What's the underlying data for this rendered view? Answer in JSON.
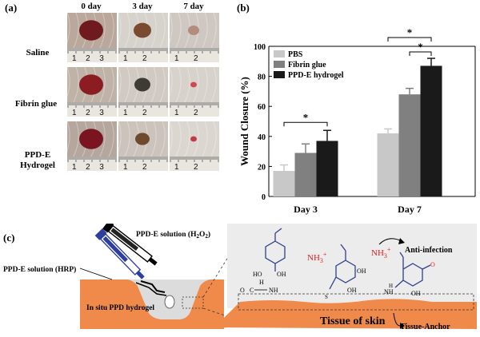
{
  "panel_a": {
    "label": "(a)",
    "columns": [
      "0 day",
      "3 day",
      "7 day"
    ],
    "rows": [
      {
        "label_lines": [
          "Saline"
        ]
      },
      {
        "label_lines": [
          "Fibrin glue"
        ]
      },
      {
        "label_lines": [
          "PPD-E",
          "Hydrogel"
        ]
      }
    ],
    "ruler_marks": [
      [
        "1",
        "2",
        "3"
      ],
      [
        "1",
        "2"
      ],
      [
        "1",
        "2"
      ]
    ]
  },
  "panel_b": {
    "label": "(b)"
  },
  "chart_data": {
    "type": "bar",
    "categories": [
      "Day 3",
      "Day 7"
    ],
    "series": [
      {
        "name": "PBS",
        "values": [
          17,
          42
        ],
        "errors": [
          4,
          3
        ],
        "color": "#c8c8c8"
      },
      {
        "name": "Fibrin glue",
        "values": [
          29,
          68
        ],
        "errors": [
          6,
          4
        ],
        "color": "#808080"
      },
      {
        "name": "PPD-E hydrogel",
        "values": [
          37,
          87
        ],
        "errors": [
          7,
          5
        ],
        "color": "#1a1a1a"
      }
    ],
    "ylabel": "Wound Closure (%)",
    "ylim": [
      0,
      100
    ],
    "yticks": [
      "0",
      "20",
      "40",
      "60",
      "80",
      "100"
    ],
    "legend_position": "top-left",
    "significance": [
      {
        "category": "Day 3",
        "from": "PBS",
        "to": "PPD-E hydrogel",
        "mark": "*"
      },
      {
        "category": "Day 7",
        "from": "PBS",
        "to": "PPD-E hydrogel",
        "mark": "*"
      },
      {
        "category": "Day 7",
        "from": "Fibrin glue",
        "to": "PPD-E hydrogel",
        "mark": "*"
      }
    ]
  },
  "panel_c": {
    "label": "(c)",
    "solution_h2o2": "PPD-E solution (H",
    "h2o2_sub1": "2",
    "h2o2_o": "O",
    "h2o2_sub2": "2",
    "h2o2_close": ")",
    "solution_hrp": "PPD-E solution (HRP)",
    "in_situ": "In situ PPD hydrogel",
    "anti_infection": "Anti-infection",
    "tissue": "Tissue of skin",
    "tissue_anchor": "Tissue-Anchor",
    "nh3": "NH",
    "nh3_sub": "3",
    "nh3_sup": "+",
    "chem": {
      "ho": "HO",
      "oh": "OH",
      "o": "O",
      "c": "C",
      "nh": "NH",
      "h": "H",
      "s": "S"
    },
    "colors": {
      "skin": "#f08a4b",
      "gel": "#d8d8d8",
      "ring": "#2f3f8f",
      "cation": "#e02020",
      "blue_syringe": "#2c3e9e"
    }
  }
}
